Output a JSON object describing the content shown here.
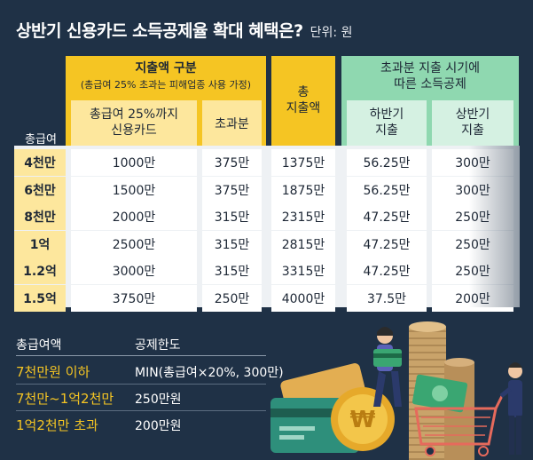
{
  "header": {
    "title": "상반기 신용카드 소득공제율 확대 혜택은?",
    "unit": "단위: 원"
  },
  "table": {
    "row_header_label": "총급여",
    "group_spend": {
      "title": "지출액 구분",
      "subtitle": "(총급여 25% 초과는 피해업종 사용 가정)",
      "col1": [
        "총급여 25%까지",
        "신용카드"
      ],
      "col2": "초과분"
    },
    "total_col": [
      "총",
      "지출액"
    ],
    "group_deduction": {
      "title": [
        "초과분 지출 시기에",
        "따른 소득공제"
      ],
      "col1": [
        "하반기",
        "지출"
      ],
      "col2": [
        "상반기",
        "지출"
      ]
    },
    "rows": [
      {
        "salary": "4천만",
        "c1": "1000만",
        "c2": "375만",
        "total": "1375만",
        "h2": "56.25만",
        "h1": "300만"
      },
      {
        "salary": "6천만",
        "c1": "1500만",
        "c2": "375만",
        "total": "1875만",
        "h2": "56.25만",
        "h1": "300만"
      },
      {
        "salary": "8천만",
        "c1": "2000만",
        "c2": "315만",
        "total": "2315만",
        "h2": "47.25만",
        "h1": "250만"
      },
      {
        "salary": "1억",
        "c1": "2500만",
        "c2": "315만",
        "total": "2815만",
        "h2": "47.25만",
        "h1": "250만"
      },
      {
        "salary": "1.2억",
        "c1": "3000만",
        "c2": "315만",
        "total": "3315만",
        "h2": "47.25만",
        "h1": "250만"
      },
      {
        "salary": "1.5억",
        "c1": "3750만",
        "c2": "250만",
        "total": "4000만",
        "h2": "37.5만",
        "h1": "200만"
      }
    ]
  },
  "limits": {
    "col_salary": "총급여액",
    "col_limit": "공제한도",
    "items": [
      {
        "range": "7천만원 이하",
        "limit": "MIN(총급여×20%, 300만)"
      },
      {
        "range": "7천만~1억2천만",
        "limit": "250만원"
      },
      {
        "range": "1억2천만 초과",
        "limit": "200만원"
      }
    ]
  },
  "colors": {
    "background": "#1f3146",
    "yellow": "#f5c523",
    "light_yellow": "#fde79d",
    "green": "#8fd8b0",
    "light_green": "#d5f1e2"
  }
}
